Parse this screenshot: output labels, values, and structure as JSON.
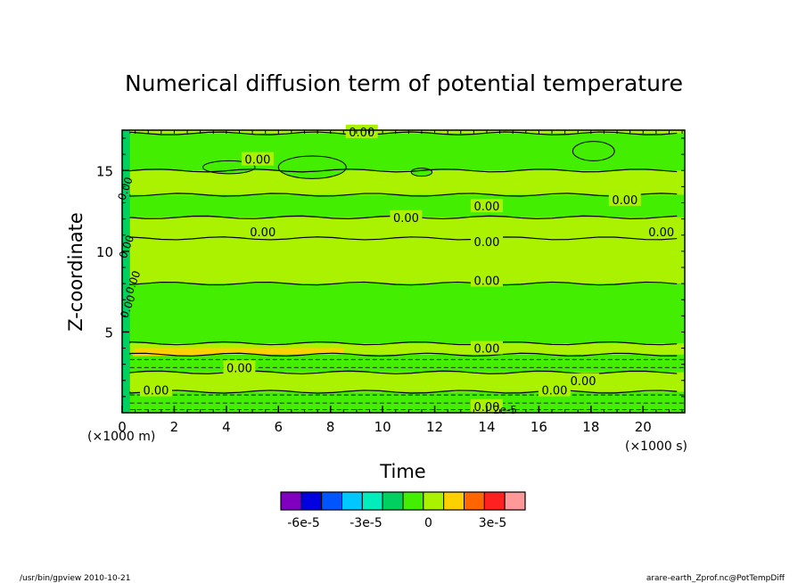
{
  "chart_data": {
    "type": "heatmap",
    "title": "Numerical diffusion term of potential temperature",
    "xlabel": "Time",
    "ylabel": "Z-coordinate",
    "x_unit": "(×1000 s)",
    "y_unit": "(×1000 m)",
    "xlim": [
      0,
      21.6
    ],
    "ylim": [
      0,
      17.5
    ],
    "x_ticks": [
      "0",
      "2",
      "4",
      "6",
      "8",
      "10",
      "12",
      "14",
      "16",
      "18",
      "20"
    ],
    "y_ticks": [
      "5",
      "10",
      "15"
    ],
    "contour_labels": [
      "0.00",
      "2e-5"
    ],
    "colorbar": {
      "colors": [
        "#7f00bf",
        "#0000e0",
        "#0055ff",
        "#00c8ff",
        "#00eebb",
        "#00d060",
        "#44ee00",
        "#aaf200",
        "#ffd000",
        "#ff6600",
        "#ff2020",
        "#ff9999"
      ],
      "tick_labels": [
        "-6e-5",
        "-3e-5",
        "0",
        "3e-5"
      ]
    },
    "bands": [
      {
        "z": [
          17.3,
          17.5
        ],
        "level": "lime"
      },
      {
        "z": [
          15.0,
          17.3
        ],
        "level": "green"
      },
      {
        "z": [
          13.5,
          15.0
        ],
        "level": "lime"
      },
      {
        "z": [
          12.1,
          13.5
        ],
        "level": "green"
      },
      {
        "z": [
          10.8,
          12.1
        ],
        "level": "lime"
      },
      {
        "z": [
          8.0,
          10.8
        ],
        "level": "lime"
      },
      {
        "z": [
          4.3,
          8.0
        ],
        "level": "green"
      },
      {
        "z": [
          3.6,
          4.3
        ],
        "level": "lime"
      },
      {
        "z": [
          2.5,
          3.6
        ],
        "level": "green"
      },
      {
        "z": [
          1.3,
          2.5
        ],
        "level": "lime"
      },
      {
        "z": [
          0.0,
          1.3
        ],
        "level": "green"
      }
    ]
  },
  "footer": {
    "left": "/usr/bin/gpview   2010-10-21",
    "right": "arare-earth_Zprof.nc@PotTempDiff"
  }
}
